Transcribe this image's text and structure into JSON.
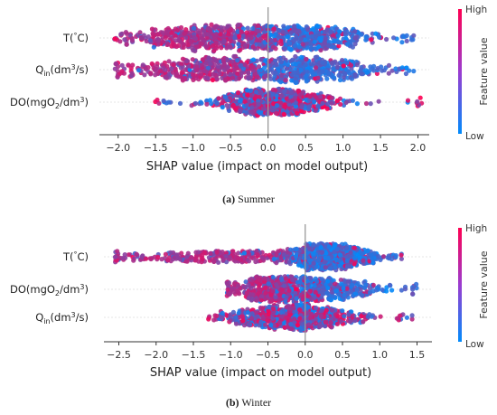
{
  "chart_data": [
    {
      "type": "scatter",
      "subtype": "shap-beeswarm",
      "panel": "(a)",
      "caption_label": "(a)",
      "caption_text": "Summer",
      "xlabel": "SHAP value (impact on model output)",
      "xlim": [
        -2.25,
        2.15
      ],
      "xticks": [
        -2.0,
        -1.5,
        -1.0,
        -0.5,
        0.0,
        0.5,
        1.0,
        1.5,
        2.0
      ],
      "colorbar": {
        "high_label": "High",
        "low_label": "Low",
        "title": "Feature value",
        "high_color": "#ff0052",
        "low_color": "#008bfb"
      },
      "features": [
        {
          "label": "T(°C)",
          "label_main": "T(",
          "label_deg": "°",
          "label_rest": "C)",
          "min": -2.05,
          "max": 2.0,
          "neg_peak": -0.75,
          "pos_peak": 0.55,
          "neg_spread": 0.55,
          "pos_spread": 0.45,
          "neg_weight": 0.5,
          "density": 1.0,
          "high_side": "negative"
        },
        {
          "label": "Qin(dm3/s)",
          "label_main": "Q",
          "label_sub": "in",
          "label_rest": "(dm",
          "label_sup": "3",
          "label_end": "/s)",
          "min": -2.05,
          "max": 1.95,
          "neg_peak": -0.8,
          "pos_peak": 0.5,
          "neg_spread": 0.5,
          "pos_spread": 0.45,
          "neg_weight": 0.5,
          "density": 0.9,
          "high_side": "negative"
        },
        {
          "label": "DO(mgO2/dm3)",
          "label_main": "DO(mgO",
          "label_sub": "2",
          "label_rest": "/dm",
          "label_sup": "3",
          "label_end": ")",
          "min": -1.55,
          "max": 2.05,
          "neg_peak": -0.05,
          "pos_peak": 0.2,
          "neg_spread": 0.35,
          "pos_spread": 0.45,
          "neg_weight": 0.5,
          "density": 0.85,
          "high_side": "mixed"
        }
      ]
    },
    {
      "type": "scatter",
      "subtype": "shap-beeswarm",
      "panel": "(b)",
      "caption_label": "(b)",
      "caption_text": "Winter",
      "xlabel": "SHAP value (impact on model output)",
      "xlim": [
        -2.7,
        1.7
      ],
      "xticks": [
        -2.5,
        -2.0,
        -1.5,
        -1.0,
        -0.5,
        0.0,
        0.5,
        1.0,
        1.5
      ],
      "colorbar": {
        "high_label": "High",
        "low_label": "Low",
        "title": "Feature value",
        "high_color": "#ff0052",
        "low_color": "#008bfb"
      },
      "features": [
        {
          "label": "T(°C)",
          "label_main": "T(",
          "label_deg": "°",
          "label_rest": "C)",
          "min": -2.55,
          "max": 1.3,
          "neg_peak": -1.0,
          "pos_peak": 0.3,
          "neg_spread": 0.8,
          "pos_spread": 0.3,
          "neg_weight": 0.35,
          "density": 1.0,
          "high_side": "negative"
        },
        {
          "label": "DO(mgO2/dm3)",
          "label_main": "DO(mgO",
          "label_sub": "2",
          "label_rest": "/dm",
          "label_sup": "3",
          "label_end": ")",
          "min": -1.05,
          "max": 1.5,
          "neg_peak": -0.45,
          "pos_peak": 0.25,
          "neg_spread": 0.3,
          "pos_spread": 0.4,
          "neg_weight": 0.5,
          "density": 0.85,
          "high_side": "negative"
        },
        {
          "label": "Qin(dm3/s)",
          "label_main": "Q",
          "label_sub": "in",
          "label_rest": "(dm",
          "label_sup": "3",
          "label_end": "/s)",
          "min": -1.3,
          "max": 1.45,
          "neg_peak": -0.4,
          "pos_peak": 0.1,
          "neg_spread": 0.35,
          "pos_spread": 0.4,
          "neg_weight": 0.5,
          "density": 0.85,
          "high_side": "mixed"
        }
      ]
    }
  ]
}
